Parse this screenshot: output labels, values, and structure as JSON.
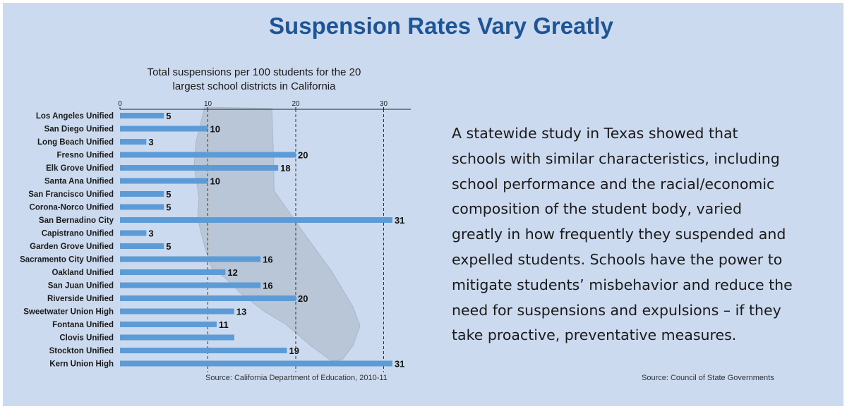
{
  "header": {
    "title": "Suspension Rates Vary Greatly"
  },
  "chart_data": {
    "type": "bar",
    "orientation": "horizontal",
    "title": "Total suspensions per 100 students for the 20 largest school districts in California",
    "title_lines": [
      "Total suspensions per 100 students for the 20",
      "largest school districts in California"
    ],
    "xlim": [
      0,
      33
    ],
    "x_ticks": [
      "0",
      "10",
      "20",
      "30"
    ],
    "grid": "dashed vertical lines at 10, 20, 30",
    "bar_color": "#5c9bd6",
    "background_shape": "California state outline",
    "categories": [
      "Los Angeles Unified",
      "San Diego Unified",
      "Long Beach Unified",
      "Fresno Unified",
      "Elk Grove Unified",
      "Santa Ana Unified",
      "San Francisco Unified",
      "Corona-Norco Unified",
      "San Bernadino City",
      "Capistrano Unified",
      "Garden Grove Unified",
      "Sacramento City Unified",
      "Oakland Unified",
      "San Juan Unified",
      "Riverside Unified",
      "Sweetwater Union High",
      "Fontana Unified",
      "Clovis Unified",
      "Stockton Unified",
      "Kern Union High"
    ],
    "values": [
      5,
      10,
      3,
      20,
      18,
      10,
      5,
      5,
      31,
      3,
      5,
      16,
      12,
      16,
      20,
      13,
      11,
      13,
      19,
      31
    ],
    "value_labels": [
      "5",
      "10",
      "3",
      "20",
      "18",
      "10",
      "5",
      "5",
      "31",
      "3",
      "5",
      "16",
      "12",
      "16",
      "20",
      "13",
      "11",
      "",
      "19",
      "31"
    ],
    "source": "Source: California Department of Education, 2010-11"
  },
  "text_block": {
    "lines": [
      "A statewide study in Texas showed that",
      "schools with similar characteristics, including",
      "school performance and the racial/economic",
      "composition of the student body, varied",
      "greatly in how frequently they suspended and",
      "expelled students. Schools have the power to",
      "mitigate students’ misbehavior and reduce the",
      "need for suspensions and expulsions – if they",
      "take proactive, preventative measures."
    ],
    "source": "Source: Council of State Governments"
  },
  "colors": {
    "panel_background": "#ccdaef",
    "title": "#1f5597",
    "bars": "#5c9bd6",
    "map": "#b9c6d8"
  }
}
